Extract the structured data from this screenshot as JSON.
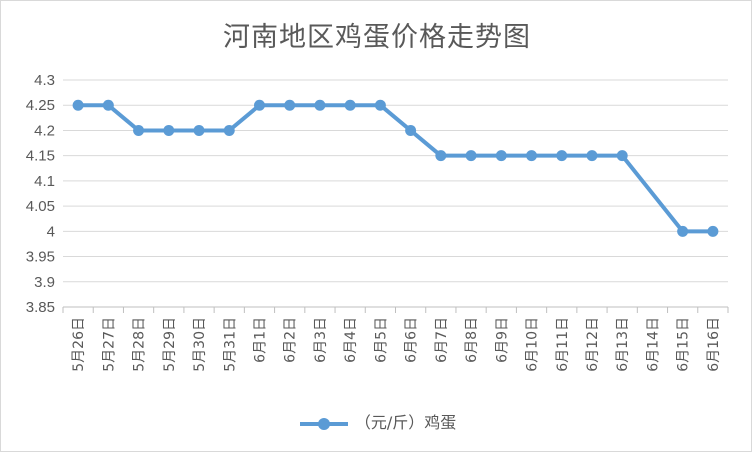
{
  "chart_data": {
    "type": "line",
    "title": "河南地区鸡蛋价格走势图",
    "categories": [
      "5月26日",
      "5月27日",
      "5月28日",
      "5月29日",
      "5月30日",
      "5月31日",
      "6月1日",
      "6月2日",
      "6月3日",
      "6月4日",
      "6月5日",
      "6月6日",
      "6月7日",
      "6月8日",
      "6月9日",
      "6月10日",
      "6月11日",
      "6月12日",
      "6月13日",
      "6月14日",
      "6月15日",
      "6月16日"
    ],
    "series": [
      {
        "name": "（元/斤）鸡蛋",
        "color": "#5b9bd5",
        "values": [
          4.25,
          4.25,
          4.2,
          4.2,
          4.2,
          4.2,
          4.25,
          4.25,
          4.25,
          4.25,
          4.25,
          4.2,
          4.15,
          4.15,
          4.15,
          4.15,
          4.15,
          4.15,
          4.15,
          null,
          4.0,
          4.0
        ]
      }
    ],
    "ylim": [
      3.85,
      4.3
    ],
    "yticks": [
      "4.3",
      "4.25",
      "4.2",
      "4.15",
      "4.1",
      "4.05",
      "4",
      "3.95",
      "3.9",
      "3.85"
    ],
    "grid": true,
    "legend_position": "bottom"
  }
}
